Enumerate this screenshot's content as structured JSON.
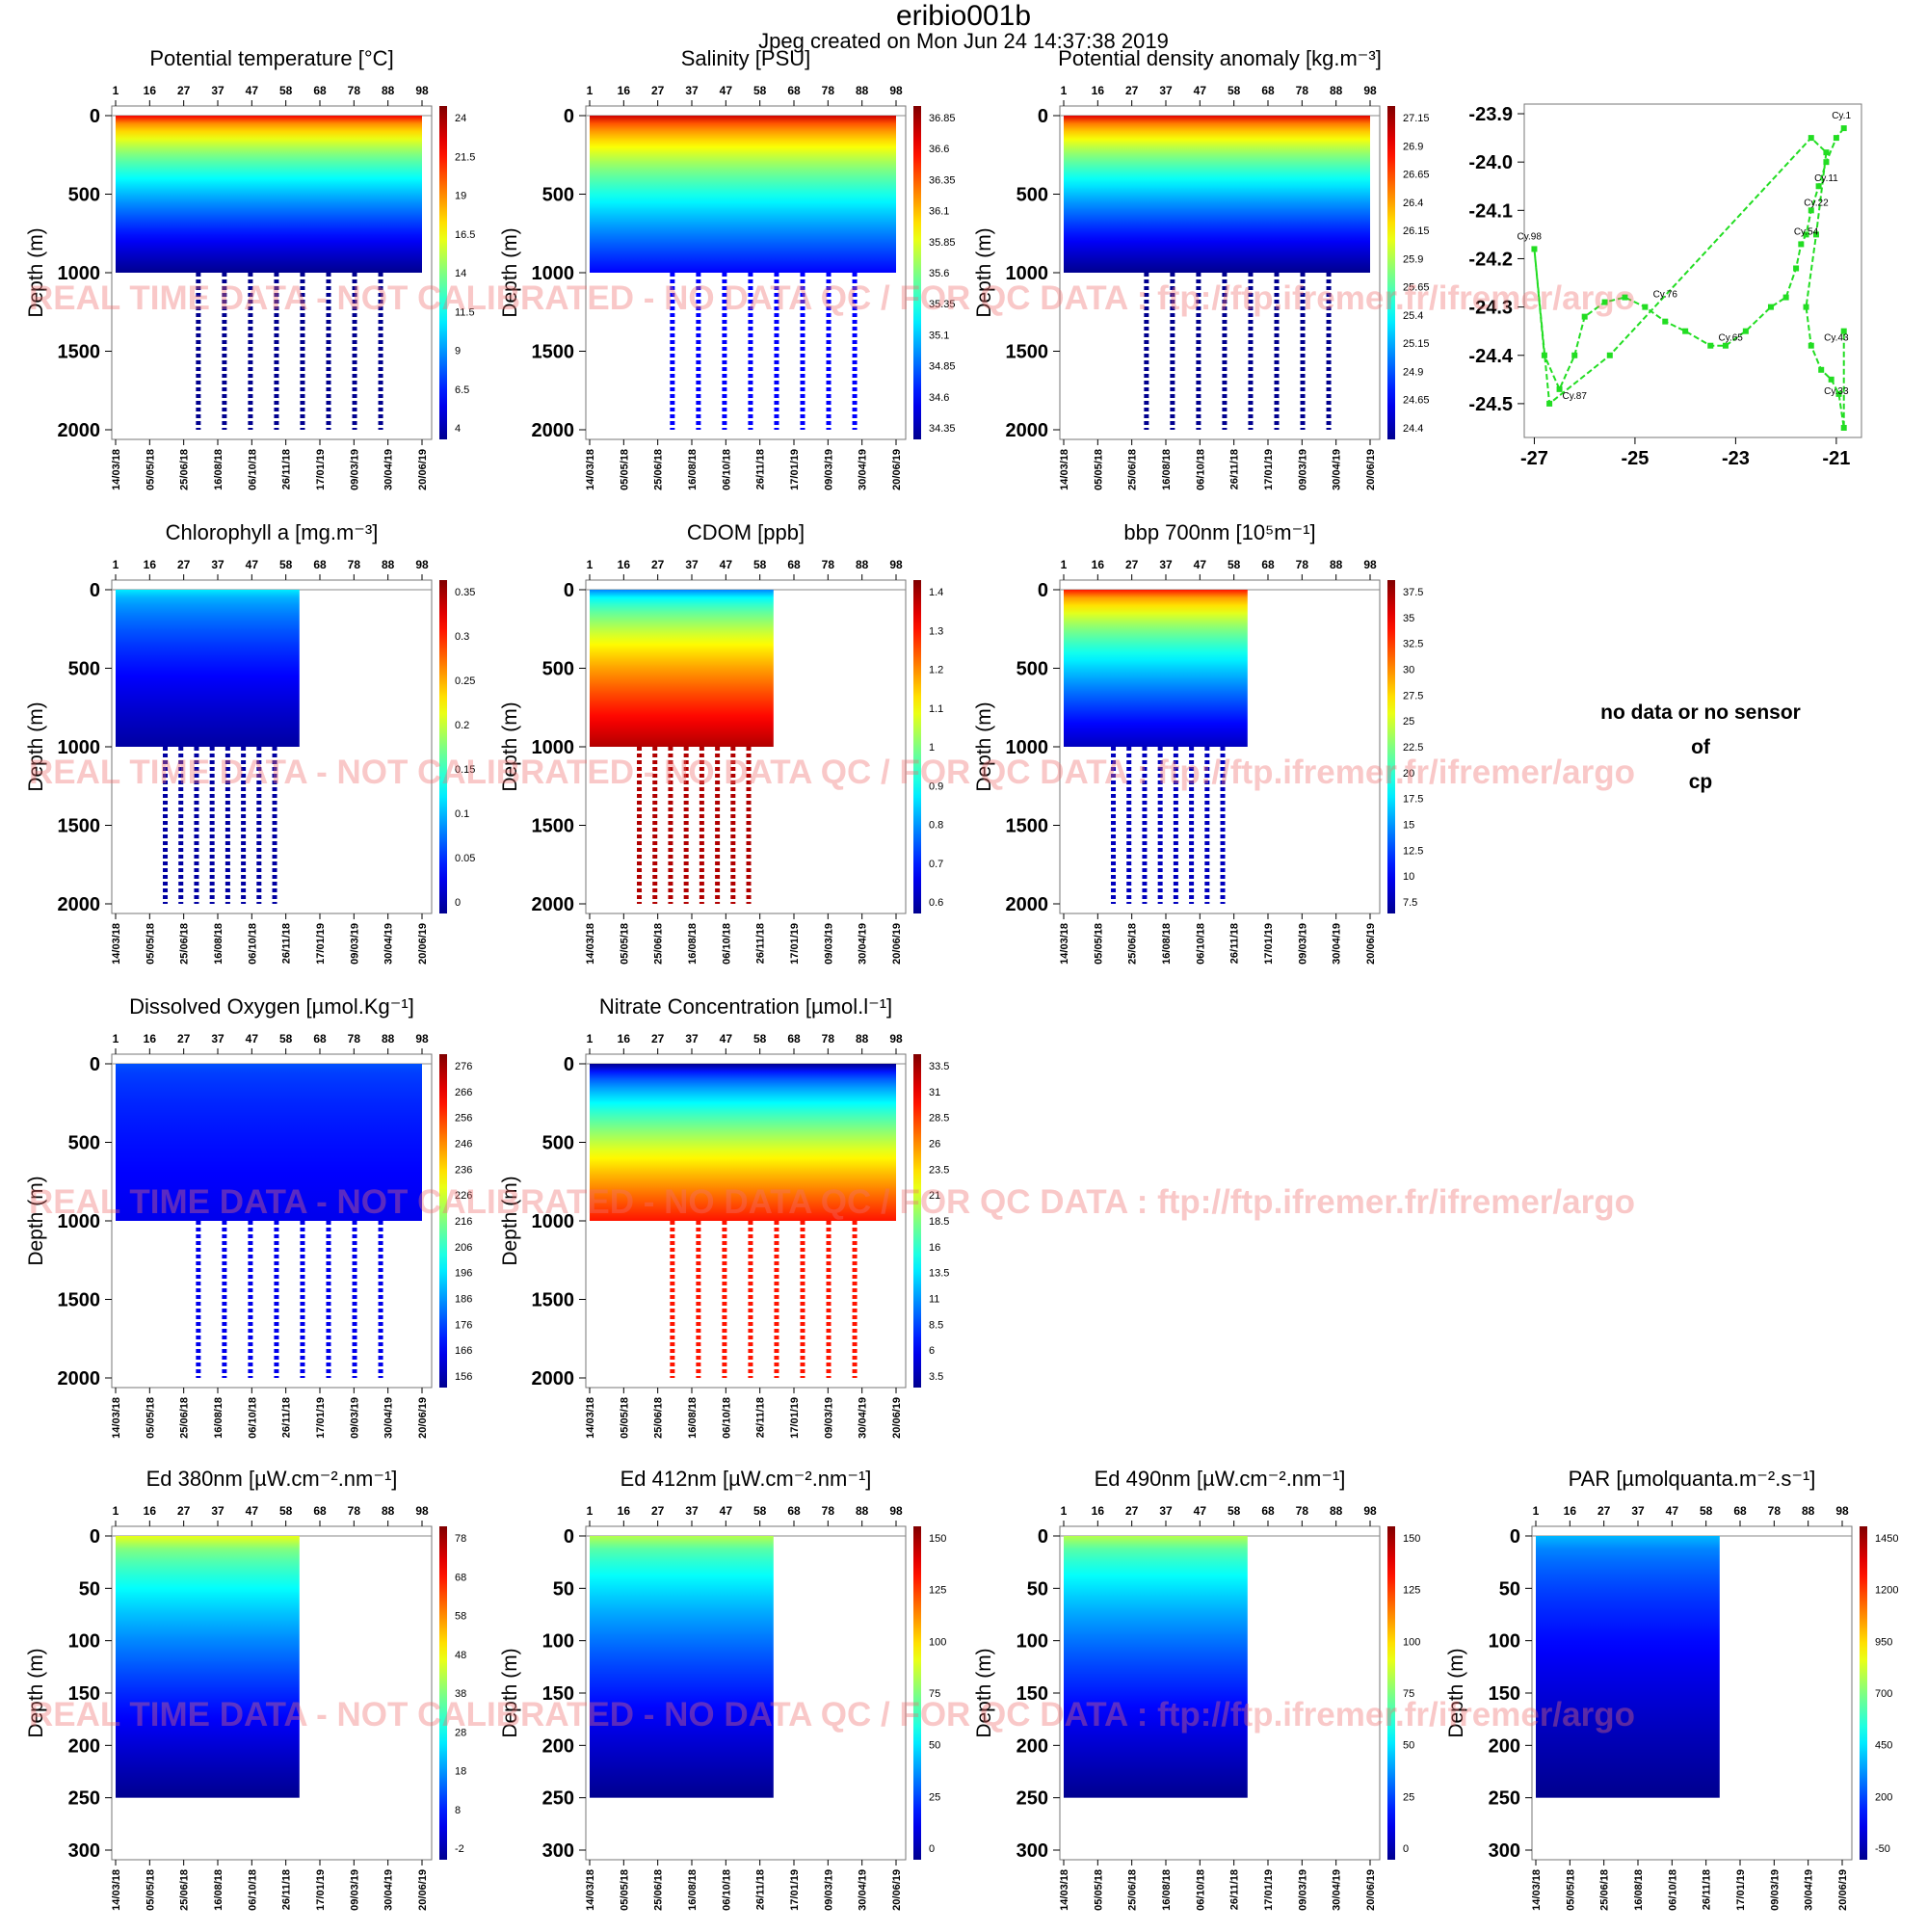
{
  "figure": {
    "title": "eribio001b",
    "created": "Jpeg created on  Mon Jun 24 14:37:38 2019",
    "watermark": "REAL TIME DATA - NOT CALIBRATED - NO DATA QC  /  FOR QC DATA : ftp://ftp.ifremer.fr/ifremer/argo",
    "nodata_message": [
      "no data or no sensor",
      "of",
      "cp"
    ]
  },
  "colors": {
    "cmap_low": "#00008f",
    "cmap_mid": "#ffff00",
    "cmap_high": "#800000",
    "trajectory": "#22dd22"
  },
  "chart_data": [
    {
      "type": "heatmap",
      "id": "temp",
      "title": "Potential temperature [°C]",
      "ylabel": "Depth (m)",
      "ylim": [
        2000,
        0
      ],
      "yticks": [
        "0",
        "500",
        "1000",
        "1500",
        "2000"
      ],
      "cycle_ticks": [
        "1",
        "16",
        "27",
        "37",
        "47",
        "58",
        "68",
        "78",
        "88",
        "98"
      ],
      "date_ticks": [
        "14/03/18",
        "05/05/18",
        "25/06/18",
        "16/08/18",
        "06/10/18",
        "26/11/18",
        "17/01/19",
        "09/03/19",
        "30/04/19",
        "20/06/19"
      ],
      "colorbar": [
        "24",
        "21.5",
        "19",
        "16.5",
        "14",
        "11.5",
        "9",
        "6.5",
        "4"
      ],
      "coverage": 1.0,
      "profile_depth": 1000,
      "deep_profile_depth": 2000,
      "surface_value": 0.88,
      "deep_value": 0.0
    },
    {
      "type": "heatmap",
      "id": "salinity",
      "title": "Salinity [PSU]",
      "ylabel": "Depth (m)",
      "ylim": [
        2000,
        0
      ],
      "yticks": [
        "0",
        "500",
        "1000",
        "1500",
        "2000"
      ],
      "cycle_ticks": [
        "1",
        "16",
        "27",
        "37",
        "47",
        "58",
        "68",
        "78",
        "88",
        "98"
      ],
      "date_ticks": [
        "14/03/18",
        "05/05/18",
        "25/06/18",
        "16/08/18",
        "06/10/18",
        "26/11/18",
        "17/01/19",
        "09/03/19",
        "30/04/19",
        "20/06/19"
      ],
      "colorbar": [
        "36.85",
        "36.6",
        "36.35",
        "36.1",
        "35.85",
        "35.6",
        "35.35",
        "35.1",
        "34.85",
        "34.6",
        "34.35"
      ],
      "coverage": 1.0,
      "profile_depth": 1000,
      "deep_profile_depth": 2000,
      "surface_value": 0.92,
      "deep_value": 0.12
    },
    {
      "type": "heatmap",
      "id": "density",
      "title": "Potential density anomaly [kg.m⁻³]",
      "ylabel": "Depth (m)",
      "ylim": [
        2000,
        0
      ],
      "yticks": [
        "0",
        "500",
        "1000",
        "1500",
        "2000"
      ],
      "cycle_ticks": [
        "1",
        "16",
        "27",
        "37",
        "47",
        "58",
        "68",
        "78",
        "88",
        "98"
      ],
      "date_ticks": [
        "14/03/18",
        "05/05/18",
        "25/06/18",
        "16/08/18",
        "06/10/18",
        "26/11/18",
        "17/01/19",
        "09/03/19",
        "30/04/19",
        "20/06/19"
      ],
      "colorbar": [
        "27.15",
        "26.9",
        "26.65",
        "26.4",
        "26.15",
        "25.9",
        "25.65",
        "25.4",
        "25.15",
        "24.9",
        "24.65",
        "24.4"
      ],
      "coverage": 1.0,
      "profile_depth": 1000,
      "deep_profile_depth": 2000,
      "surface_value": 0.9,
      "deep_value": 0.0
    },
    {
      "type": "line",
      "id": "trajectory",
      "xlim": [
        -27.2,
        -20.5
      ],
      "ylim": [
        -24.57,
        -23.88
      ],
      "xticks": [
        -27,
        -25,
        -23,
        -21
      ],
      "yticks": [
        -23.9,
        -24.0,
        -24.1,
        -24.2,
        -24.3,
        -24.4,
        -24.5
      ],
      "x": [
        -20.85,
        -21.0,
        -21.2,
        -21.35,
        -21.5,
        -21.6,
        -21.7,
        -21.8,
        -22.0,
        -22.3,
        -22.8,
        -23.2,
        -23.5,
        -24.0,
        -24.4,
        -24.8,
        -25.2,
        -25.6,
        -26.0,
        -26.2,
        -26.5,
        -26.8,
        -27.0,
        -26.7,
        -25.5,
        -21.5,
        -21.2,
        -21.4,
        -21.6,
        -21.5,
        -21.3,
        -21.1,
        -20.95,
        -20.85,
        -20.85
      ],
      "y": [
        -23.93,
        -23.95,
        -24.0,
        -24.05,
        -24.1,
        -24.15,
        -24.17,
        -24.22,
        -24.28,
        -24.3,
        -24.35,
        -24.38,
        -24.38,
        -24.35,
        -24.33,
        -24.3,
        -24.28,
        -24.29,
        -24.32,
        -24.4,
        -24.47,
        -24.4,
        -24.18,
        -24.5,
        -24.4,
        -23.95,
        -23.98,
        -24.15,
        -24.3,
        -24.38,
        -24.43,
        -24.45,
        -24.48,
        -24.55,
        -24.35
      ],
      "labels": [
        {
          "text": "Cy.1",
          "x": -20.9,
          "y": -23.91
        },
        {
          "text": "Cy.11",
          "x": -21.2,
          "y": -24.04
        },
        {
          "text": "Cy.22",
          "x": -21.4,
          "y": -24.09
        },
        {
          "text": "Cy.54",
          "x": -21.6,
          "y": -24.15
        },
        {
          "text": "Cy.76",
          "x": -24.4,
          "y": -24.28
        },
        {
          "text": "Cy.65",
          "x": -23.1,
          "y": -24.37
        },
        {
          "text": "Cy.43",
          "x": -21.0,
          "y": -24.37
        },
        {
          "text": "Cy.33",
          "x": -21.0,
          "y": -24.48
        },
        {
          "text": "Cy.87",
          "x": -26.2,
          "y": -24.49
        },
        {
          "text": "Cy.98",
          "x": -27.1,
          "y": -24.16
        }
      ]
    },
    {
      "type": "heatmap",
      "id": "chla",
      "title": "Chlorophyll a [mg.m⁻³]",
      "ylabel": "Depth (m)",
      "ylim": [
        2000,
        0
      ],
      "yticks": [
        "0",
        "500",
        "1000",
        "1500",
        "2000"
      ],
      "cycle_ticks": [
        "1",
        "16",
        "27",
        "37",
        "47",
        "58",
        "68",
        "78",
        "88",
        "98"
      ],
      "date_ticks": [
        "14/03/18",
        "05/05/18",
        "25/06/18",
        "16/08/18",
        "06/10/18",
        "26/11/18",
        "17/01/19",
        "09/03/19",
        "30/04/19",
        "20/06/19"
      ],
      "colorbar": [
        "0.35",
        "0.3",
        "0.25",
        "0.2",
        "0.15",
        "0.1",
        "0.05",
        "0"
      ],
      "coverage": 0.6,
      "profile_depth": 1000,
      "deep_profile_depth": 2000,
      "surface_value": 0.35,
      "deep_value": 0.02
    },
    {
      "type": "heatmap",
      "id": "cdom",
      "title": "CDOM  [ppb]",
      "ylabel": "Depth (m)",
      "ylim": [
        2000,
        0
      ],
      "yticks": [
        "0",
        "500",
        "1000",
        "1500",
        "2000"
      ],
      "cycle_ticks": [
        "1",
        "16",
        "27",
        "37",
        "47",
        "58",
        "68",
        "78",
        "88",
        "98"
      ],
      "date_ticks": [
        "14/03/18",
        "05/05/18",
        "25/06/18",
        "16/08/18",
        "06/10/18",
        "26/11/18",
        "17/01/19",
        "09/03/19",
        "30/04/19",
        "20/06/19"
      ],
      "colorbar": [
        "1.4",
        "1.3",
        "1.2",
        "1.1",
        "1",
        "0.9",
        "0.8",
        "0.7",
        "0.6"
      ],
      "coverage": 0.6,
      "profile_depth": 1000,
      "deep_profile_depth": 2000,
      "surface_value": 0.25,
      "deep_value": 0.95
    },
    {
      "type": "heatmap",
      "id": "bbp700",
      "title": "bbp 700nm [10⁵m⁻¹]",
      "ylabel": "Depth (m)",
      "ylim": [
        2000,
        0
      ],
      "yticks": [
        "0",
        "500",
        "1000",
        "1500",
        "2000"
      ],
      "cycle_ticks": [
        "1",
        "16",
        "27",
        "37",
        "47",
        "58",
        "68",
        "78",
        "88",
        "98"
      ],
      "date_ticks": [
        "14/03/18",
        "05/05/18",
        "25/06/18",
        "16/08/18",
        "06/10/18",
        "26/11/18",
        "17/01/19",
        "09/03/19",
        "30/04/19",
        "20/06/19"
      ],
      "colorbar": [
        "37.5",
        "35",
        "32.5",
        "30",
        "27.5",
        "25",
        "22.5",
        "20",
        "17.5",
        "15",
        "12.5",
        "10",
        "7.5"
      ],
      "coverage": 0.6,
      "profile_depth": 1000,
      "deep_profile_depth": 2000,
      "surface_value": 0.85,
      "deep_value": 0.05
    },
    {
      "type": "heatmap",
      "id": "oxygen",
      "title": "Dissolved Oxygen [µmol.Kg⁻¹]",
      "ylabel": "Depth (m)",
      "ylim": [
        2000,
        0
      ],
      "yticks": [
        "0",
        "500",
        "1000",
        "1500",
        "2000"
      ],
      "cycle_ticks": [
        "1",
        "16",
        "27",
        "37",
        "47",
        "58",
        "68",
        "78",
        "88",
        "98"
      ],
      "date_ticks": [
        "14/03/18",
        "05/05/18",
        "25/06/18",
        "16/08/18",
        "06/10/18",
        "26/11/18",
        "17/01/19",
        "09/03/19",
        "30/04/19",
        "20/06/19"
      ],
      "colorbar": [
        "276",
        "266",
        "256",
        "246",
        "236",
        "226",
        "216",
        "206",
        "196",
        "186",
        "176",
        "166",
        "156"
      ],
      "coverage": 1.0,
      "profile_depth": 1000,
      "deep_profile_depth": 2000,
      "surface_value": 0.2,
      "deep_value": 0.1
    },
    {
      "type": "heatmap",
      "id": "nitrate",
      "title": "Nitrate Concentration [µmol.l⁻¹]",
      "ylabel": "Depth (m)",
      "ylim": [
        2000,
        0
      ],
      "yticks": [
        "0",
        "500",
        "1000",
        "1500",
        "2000"
      ],
      "cycle_ticks": [
        "1",
        "16",
        "27",
        "37",
        "47",
        "58",
        "68",
        "78",
        "88",
        "98"
      ],
      "date_ticks": [
        "14/03/18",
        "05/05/18",
        "25/06/18",
        "16/08/18",
        "06/10/18",
        "26/11/18",
        "17/01/19",
        "09/03/19",
        "30/04/19",
        "20/06/19"
      ],
      "colorbar": [
        "33.5",
        "31",
        "28.5",
        "26",
        "23.5",
        "21",
        "18.5",
        "16",
        "13.5",
        "11",
        "8.5",
        "6",
        "3.5"
      ],
      "coverage": 1.0,
      "profile_depth": 1000,
      "deep_profile_depth": 2000,
      "surface_value": 0.0,
      "deep_value": 0.85
    },
    {
      "type": "heatmap",
      "id": "ed380",
      "title": "Ed 380nm [µW.cm⁻².nm⁻¹]",
      "ylabel": "Depth (m)",
      "ylim": [
        300,
        0
      ],
      "yticks": [
        "0",
        "50",
        "100",
        "150",
        "200",
        "250",
        "300"
      ],
      "cycle_ticks": [
        "1",
        "16",
        "27",
        "37",
        "47",
        "58",
        "68",
        "78",
        "88",
        "98"
      ],
      "date_ticks": [
        "14/03/18",
        "05/05/18",
        "25/06/18",
        "16/08/18",
        "06/10/18",
        "26/11/18",
        "17/01/19",
        "09/03/19",
        "30/04/19",
        "20/06/19"
      ],
      "colorbar": [
        "78",
        "68",
        "58",
        "48",
        "38",
        "28",
        "18",
        "8",
        "-2"
      ],
      "coverage": 0.6,
      "profile_depth": 250,
      "deep_profile_depth": 250,
      "surface_value": 0.6,
      "deep_value": 0.0
    },
    {
      "type": "heatmap",
      "id": "ed412",
      "title": "Ed 412nm [µW.cm⁻².nm⁻¹]",
      "ylabel": "Depth (m)",
      "ylim": [
        300,
        0
      ],
      "yticks": [
        "0",
        "50",
        "100",
        "150",
        "200",
        "250",
        "300"
      ],
      "cycle_ticks": [
        "1",
        "16",
        "27",
        "37",
        "47",
        "58",
        "68",
        "78",
        "88",
        "98"
      ],
      "date_ticks": [
        "14/03/18",
        "05/05/18",
        "25/06/18",
        "16/08/18",
        "06/10/18",
        "26/11/18",
        "17/01/19",
        "09/03/19",
        "30/04/19",
        "20/06/19"
      ],
      "colorbar": [
        "150",
        "125",
        "100",
        "75",
        "50",
        "25",
        "0"
      ],
      "coverage": 0.6,
      "profile_depth": 250,
      "deep_profile_depth": 250,
      "surface_value": 0.55,
      "deep_value": 0.0
    },
    {
      "type": "heatmap",
      "id": "ed490",
      "title": "Ed 490nm [µW.cm⁻².nm⁻¹]",
      "ylabel": "Depth (m)",
      "ylim": [
        300,
        0
      ],
      "yticks": [
        "0",
        "50",
        "100",
        "150",
        "200",
        "250",
        "300"
      ],
      "cycle_ticks": [
        "1",
        "16",
        "27",
        "37",
        "47",
        "58",
        "68",
        "78",
        "88",
        "98"
      ],
      "date_ticks": [
        "14/03/18",
        "05/05/18",
        "25/06/18",
        "16/08/18",
        "06/10/18",
        "26/11/18",
        "17/01/19",
        "09/03/19",
        "30/04/19",
        "20/06/19"
      ],
      "colorbar": [
        "150",
        "125",
        "100",
        "75",
        "50",
        "25",
        "0"
      ],
      "coverage": 0.6,
      "profile_depth": 250,
      "deep_profile_depth": 250,
      "surface_value": 0.55,
      "deep_value": 0.0
    },
    {
      "type": "heatmap",
      "id": "par",
      "title": "PAR [µmolquanta.m⁻².s⁻¹]",
      "ylabel": "Depth (m)",
      "ylim": [
        300,
        0
      ],
      "yticks": [
        "0",
        "50",
        "100",
        "150",
        "200",
        "250",
        "300"
      ],
      "cycle_ticks": [
        "1",
        "16",
        "27",
        "37",
        "47",
        "58",
        "68",
        "78",
        "88",
        "98"
      ],
      "date_ticks": [
        "14/03/18",
        "05/05/18",
        "25/06/18",
        "16/08/18",
        "06/10/18",
        "26/11/18",
        "17/01/19",
        "09/03/19",
        "30/04/19",
        "20/06/19"
      ],
      "colorbar": [
        "1450",
        "1200",
        "950",
        "700",
        "450",
        "200",
        "-50"
      ],
      "coverage": 0.6,
      "profile_depth": 250,
      "deep_profile_depth": 250,
      "surface_value": 0.3,
      "deep_value": 0.0
    }
  ]
}
